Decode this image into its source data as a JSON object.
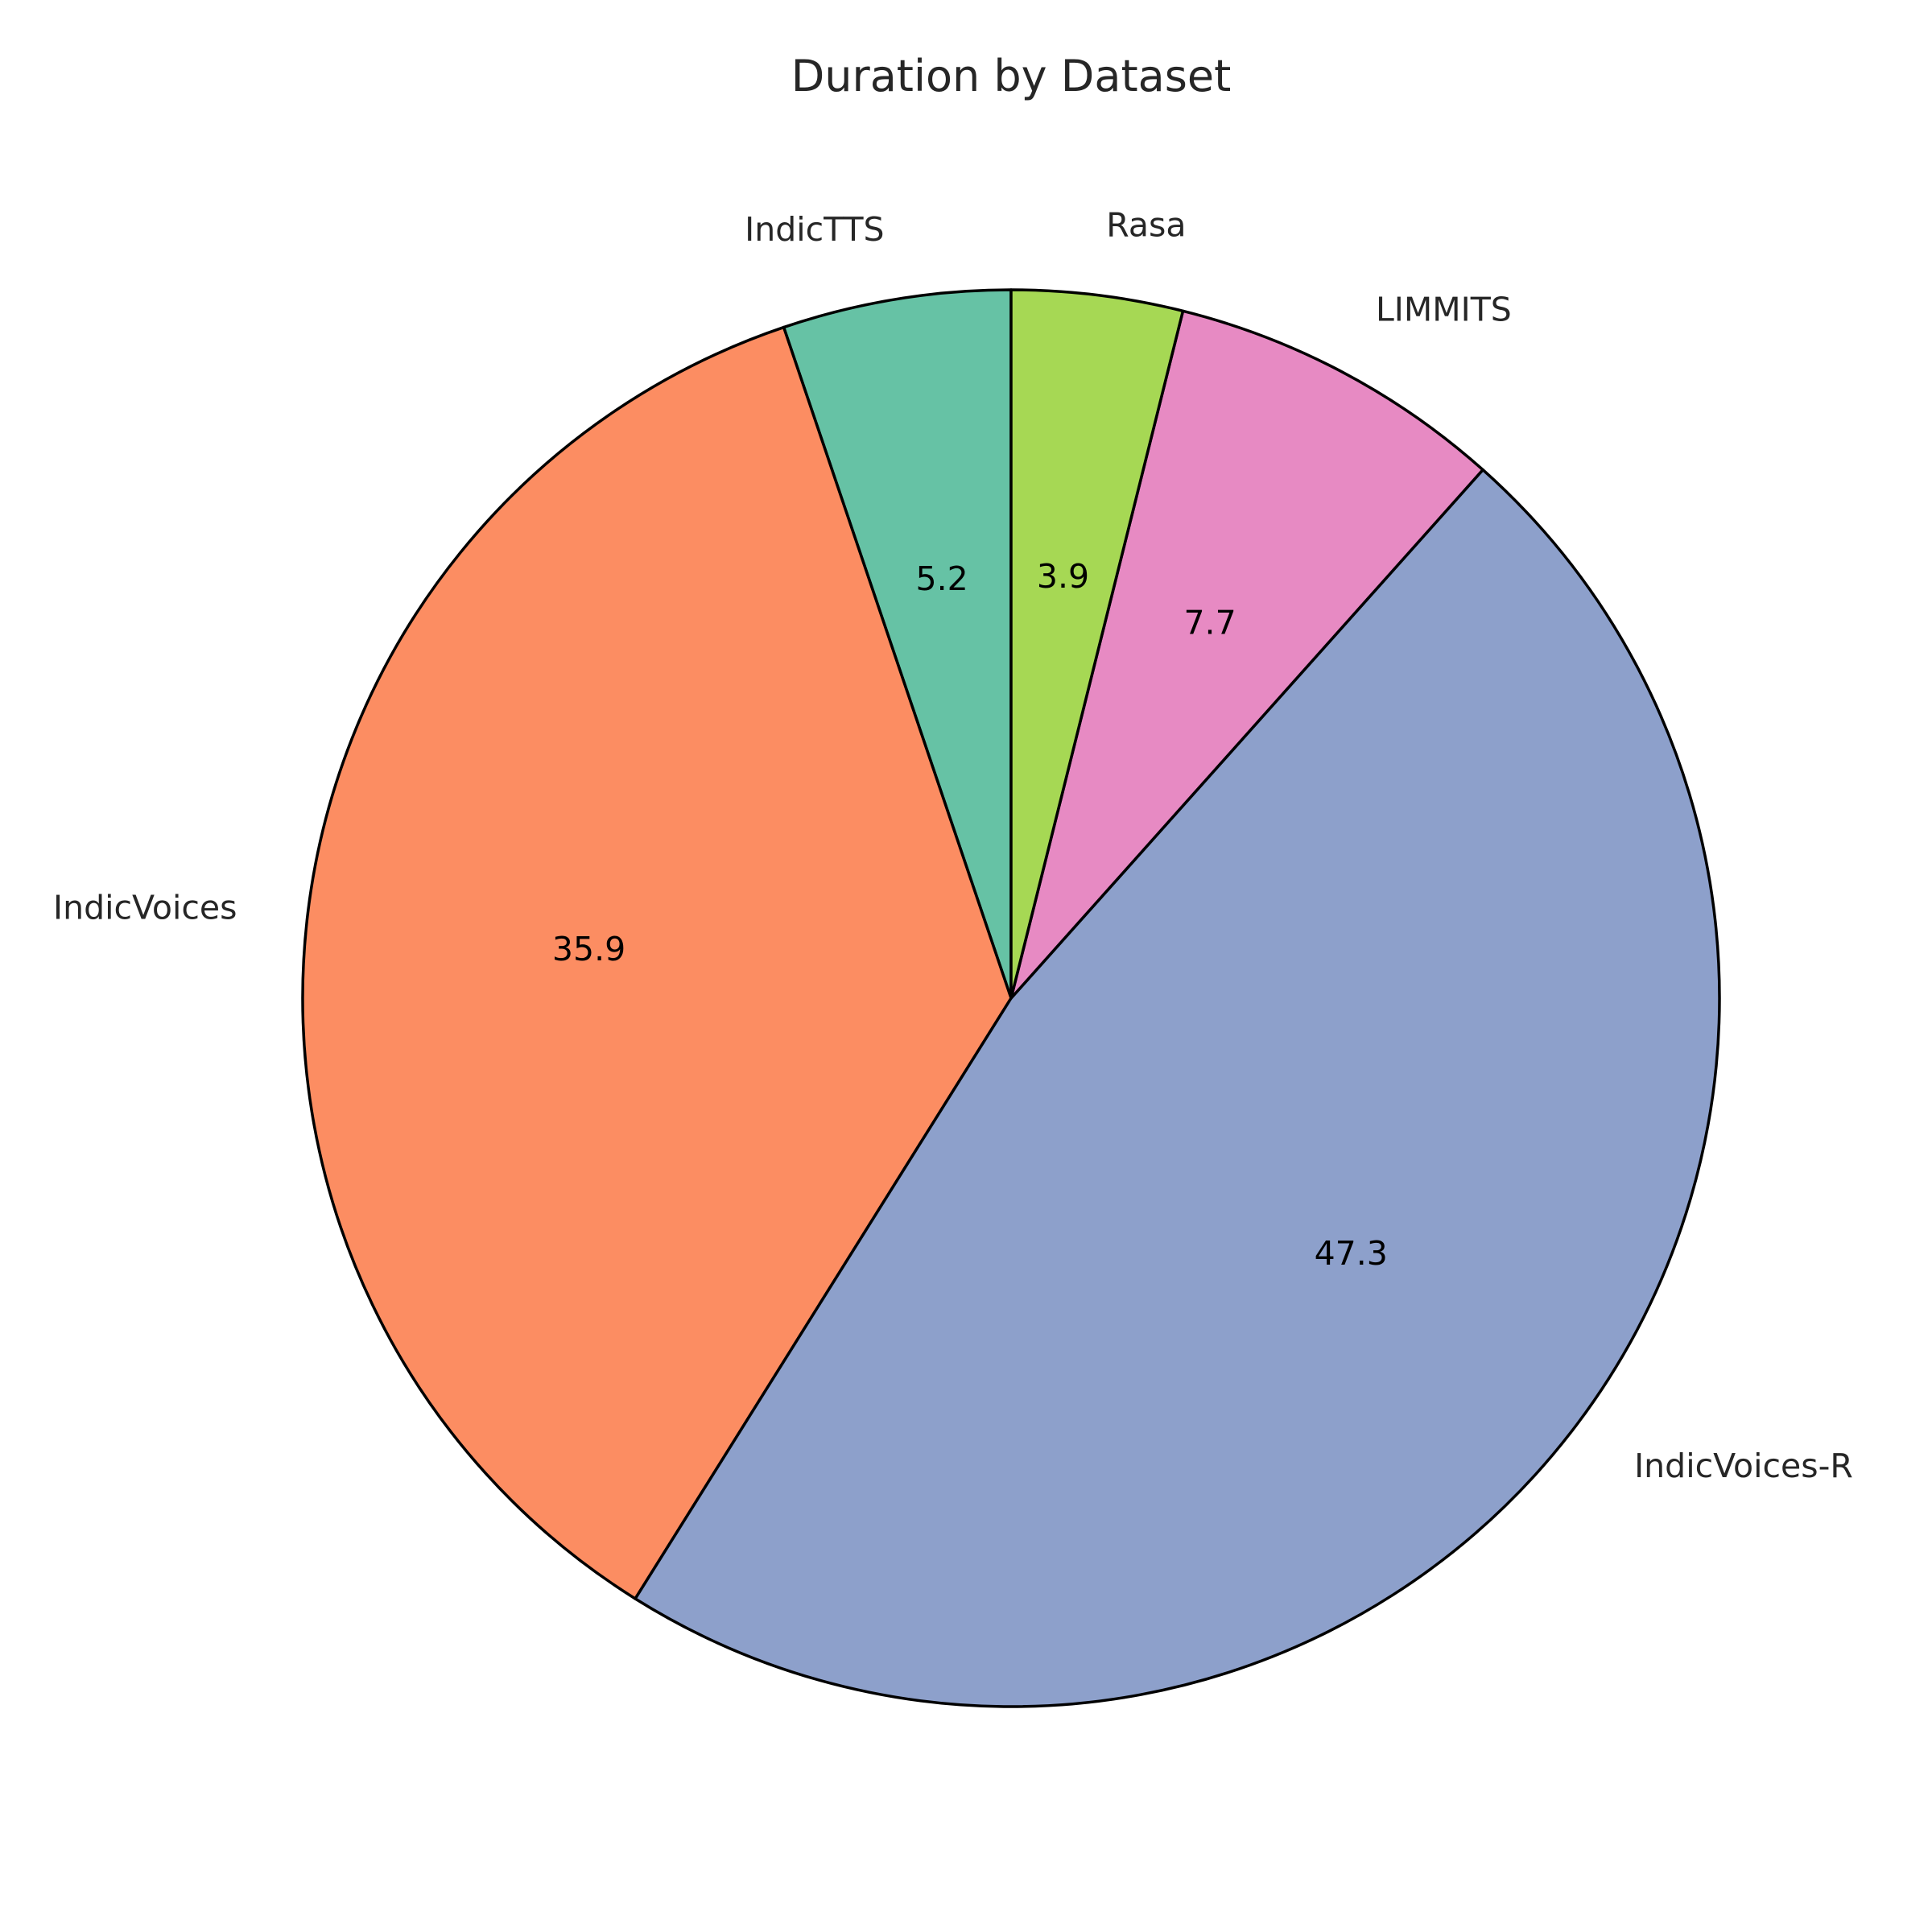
{
  "chart_data": {
    "type": "pie",
    "title": "Duration by Dataset",
    "categories": [
      "IndicTTS",
      "IndicVoices",
      "IndicVoices-R",
      "LIMMITS",
      "Rasa"
    ],
    "values": [
      5.2,
      35.9,
      47.3,
      7.7,
      3.9
    ],
    "value_labels": [
      "5.2",
      "35.9",
      "47.3",
      "7.7",
      "3.9"
    ],
    "colors": [
      "#66c2a5",
      "#fc8d62",
      "#8da0cb",
      "#e78ac3",
      "#a6d854"
    ],
    "start_angle_deg": 90,
    "direction": "counterclockwise",
    "edge_color": "#000000"
  }
}
